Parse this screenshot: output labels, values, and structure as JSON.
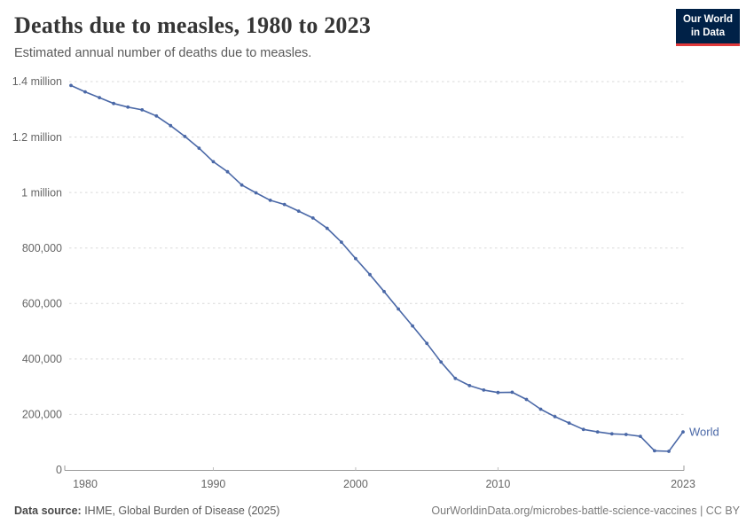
{
  "header": {
    "title": "Deaths due to measles, 1980 to 2023",
    "subtitle": "Estimated annual number of deaths due to measles.",
    "logo": {
      "line1": "Our World",
      "line2": "in Data"
    }
  },
  "footer": {
    "source_label": "Data source:",
    "source_text": " IHME, Global Burden of Disease (2025)",
    "right_text": "OurWorldinData.org/microbes-battle-science-vaccines | CC BY"
  },
  "colors": {
    "line": "#4A68A7",
    "gridline": "#d9d9d9",
    "axis": "#9a9a9a",
    "mid_tick": "#bdbdbd",
    "tick_text": "#666666",
    "logo_bg": "#002147",
    "logo_stripe": "#e0393b"
  },
  "chart_data": {
    "type": "line",
    "title": "Deaths due to measles, 1980 to 2023",
    "subtitle": "Estimated annual number of deaths due to measles.",
    "xlabel": "",
    "ylabel": "",
    "xlim": [
      1980,
      2023
    ],
    "ylim": [
      0,
      1400000
    ],
    "grid": true,
    "legend_position": "end-of-line",
    "series_label": "World",
    "x": [
      1980,
      1981,
      1982,
      1983,
      1984,
      1985,
      1986,
      1987,
      1988,
      1989,
      1990,
      1991,
      1992,
      1993,
      1994,
      1995,
      1996,
      1997,
      1998,
      1999,
      2000,
      2001,
      2002,
      2003,
      2004,
      2005,
      2006,
      2007,
      2008,
      2009,
      2010,
      2011,
      2012,
      2013,
      2014,
      2015,
      2016,
      2017,
      2018,
      2019,
      2020,
      2021,
      2022,
      2023
    ],
    "values": [
      1386000,
      1363000,
      1342000,
      1321000,
      1308000,
      1298000,
      1276000,
      1241000,
      1202000,
      1160000,
      1111000,
      1075000,
      1027000,
      999000,
      972000,
      957000,
      933000,
      908000,
      871000,
      821000,
      762000,
      704000,
      643000,
      580000,
      519000,
      456000,
      389000,
      330000,
      304000,
      288000,
      279000,
      280000,
      254000,
      219000,
      192000,
      169000,
      146000,
      137000,
      130000,
      128000,
      121000,
      69000,
      67000,
      137000
    ],
    "x_ticks": [
      {
        "year": 1980,
        "label": "1980"
      },
      {
        "year": 1990,
        "label": "1990"
      },
      {
        "year": 2000,
        "label": "2000"
      },
      {
        "year": 2010,
        "label": "2010"
      },
      {
        "year": 2023,
        "label": "2023"
      }
    ],
    "y_ticks": [
      {
        "value": 0,
        "label": "0"
      },
      {
        "value": 200000,
        "label": "200,000"
      },
      {
        "value": 400000,
        "label": "400,000"
      },
      {
        "value": 600000,
        "label": "600,000"
      },
      {
        "value": 800000,
        "label": "800,000"
      },
      {
        "value": 1000000,
        "label": "1 million"
      },
      {
        "value": 1200000,
        "label": "1.2 million"
      },
      {
        "value": 1400000,
        "label": "1.4 million"
      }
    ]
  }
}
